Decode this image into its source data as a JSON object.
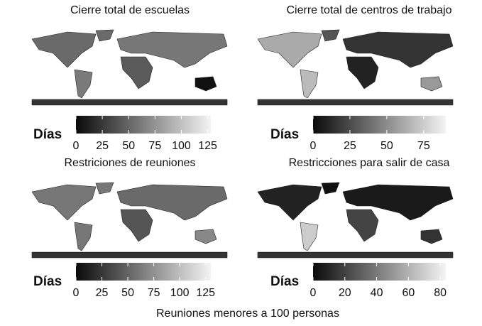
{
  "maps": [
    {
      "title": "Cierre total de escuelas",
      "legend_title": "Días",
      "legend_lim": [
        0,
        128
      ],
      "legend_ticks": [
        0,
        25,
        50,
        75,
        100,
        125
      ]
    },
    {
      "title": "Cierre total de centros de trabajo",
      "legend_title": "Días",
      "legend_lim": [
        0,
        90
      ],
      "legend_ticks": [
        0,
        25,
        50,
        75
      ]
    },
    {
      "title": "Restriciones de reuniones",
      "legend_title": "Días",
      "legend_lim": [
        0,
        130
      ],
      "legend_ticks": [
        0,
        25,
        50,
        75,
        100,
        125
      ]
    },
    {
      "title": "Restricciones para salir de casa",
      "legend_title": "Días",
      "legend_lim": [
        0,
        83.5
      ],
      "legend_ticks": [
        0,
        20,
        40,
        60,
        80
      ]
    }
  ],
  "caption": "Reuniones menores a 100 personas"
}
